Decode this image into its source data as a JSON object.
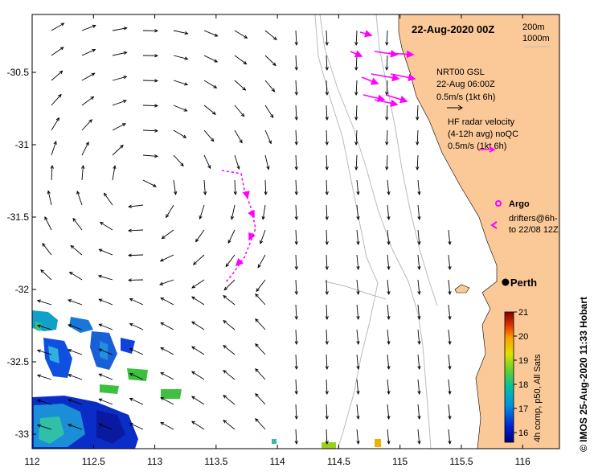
{
  "map": {
    "title": "22-Aug-2020 00Z",
    "depth_legend": [
      "200m",
      "1000m"
    ],
    "x_ticks": [
      "112",
      "112.5",
      "113",
      "113.5",
      "114",
      "114.5",
      "115",
      "115.5",
      "116"
    ],
    "y_ticks": [
      "-30.5",
      "-31",
      "-31.5",
      "-32",
      "-32.5",
      "-33"
    ],
    "lon_range": [
      112,
      116.3
    ],
    "lat_range": [
      -33.1,
      -30.1
    ],
    "legend_gsl": [
      "NRT00 GSL",
      "22-Aug 06:00Z",
      "0.5m/s (1kt 6h)"
    ],
    "legend_hf": [
      "HF radar velocity",
      "(4-12h avg) noQC",
      "0.5m/s (1kt 6h)"
    ],
    "argo_label": "Argo",
    "drifters_label": [
      "drifters@6h-",
      "to 22/08 12Z"
    ],
    "city": "Perth",
    "city_position": {
      "lon": 115.86,
      "lat": -31.95
    },
    "colorbar": {
      "ticks": [
        "16",
        "17",
        "18",
        "19",
        "20",
        "21"
      ],
      "range": [
        15.6,
        21
      ],
      "label": "4h comp, p50, All Sats"
    },
    "credit": "© IMOS 25-Aug-2020 11:33 Hobart",
    "colors": {
      "land": "#fbc897",
      "drifter": "#ff00ff",
      "arrow": "#000000",
      "contour": "#bbbbbb"
    }
  }
}
